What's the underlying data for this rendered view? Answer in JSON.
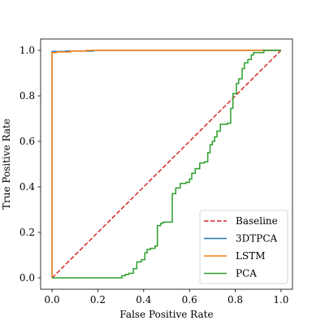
{
  "chart_data": {
    "type": "line",
    "title": "",
    "xlabel": "False Positive Rate",
    "ylabel": "True Positive Rate",
    "xlim": [
      -0.05,
      1.05
    ],
    "ylim": [
      -0.05,
      1.05
    ],
    "xticks": [
      "0.0",
      "0.2",
      "0.4",
      "0.6",
      "0.8",
      "1.0"
    ],
    "yticks": [
      "0.0",
      "0.2",
      "0.4",
      "0.6",
      "0.8",
      "1.0"
    ],
    "grid": false,
    "legend_position": "bottom-right",
    "series": [
      {
        "name": "Baseline",
        "color": "#d62728",
        "dash": "dashed",
        "x": [
          0,
          1
        ],
        "y": [
          0,
          1
        ]
      },
      {
        "name": "3DTPCA",
        "color": "#1f77b4",
        "dash": "solid",
        "x": [
          0,
          0,
          0.06,
          0.06,
          0.18,
          0.18,
          1
        ],
        "y": [
          0,
          0.995,
          0.995,
          0.997,
          0.997,
          1.0,
          1.0
        ]
      },
      {
        "name": "LSTM",
        "color": "#ff7f0e",
        "dash": "solid",
        "x": [
          0,
          0,
          0.02,
          0.02,
          0.08,
          0.08,
          0.15,
          0.15,
          1
        ],
        "y": [
          0,
          0.99,
          0.99,
          0.993,
          0.993,
          0.997,
          0.997,
          1.0,
          1.0
        ]
      },
      {
        "name": "PCA",
        "color": "#2ca02c",
        "dash": "solid",
        "x": [
          0,
          0.305,
          0.305,
          0.32,
          0.32,
          0.335,
          0.335,
          0.355,
          0.355,
          0.37,
          0.37,
          0.39,
          0.39,
          0.405,
          0.405,
          0.415,
          0.415,
          0.43,
          0.43,
          0.45,
          0.45,
          0.46,
          0.46,
          0.475,
          0.475,
          0.485,
          0.485,
          0.525,
          0.525,
          0.54,
          0.54,
          0.56,
          0.56,
          0.585,
          0.585,
          0.6,
          0.6,
          0.61,
          0.61,
          0.625,
          0.625,
          0.645,
          0.645,
          0.665,
          0.665,
          0.68,
          0.68,
          0.69,
          0.69,
          0.7,
          0.7,
          0.71,
          0.71,
          0.72,
          0.72,
          0.735,
          0.735,
          0.765,
          0.765,
          0.78,
          0.78,
          0.79,
          0.79,
          0.805,
          0.805,
          0.815,
          0.815,
          0.83,
          0.83,
          0.84,
          0.84,
          0.855,
          0.855,
          0.87,
          0.87,
          0.88,
          0.88,
          0.925,
          0.925,
          1.0
        ],
        "y": [
          0,
          0,
          0.01,
          0.01,
          0.015,
          0.015,
          0.02,
          0.02,
          0.04,
          0.04,
          0.07,
          0.07,
          0.08,
          0.08,
          0.11,
          0.11,
          0.125,
          0.125,
          0.13,
          0.13,
          0.14,
          0.14,
          0.23,
          0.23,
          0.24,
          0.24,
          0.245,
          0.245,
          0.37,
          0.37,
          0.395,
          0.395,
          0.415,
          0.415,
          0.42,
          0.42,
          0.435,
          0.435,
          0.46,
          0.46,
          0.48,
          0.48,
          0.505,
          0.505,
          0.51,
          0.51,
          0.55,
          0.55,
          0.585,
          0.585,
          0.6,
          0.6,
          0.62,
          0.62,
          0.645,
          0.645,
          0.675,
          0.675,
          0.68,
          0.68,
          0.745,
          0.745,
          0.81,
          0.81,
          0.855,
          0.855,
          0.875,
          0.875,
          0.92,
          0.92,
          0.945,
          0.945,
          0.96,
          0.96,
          0.98,
          0.98,
          0.99,
          0.99,
          1.0,
          1.0
        ]
      }
    ]
  },
  "colors": {
    "axes": "#000000",
    "legend_border": "#cccccc"
  }
}
